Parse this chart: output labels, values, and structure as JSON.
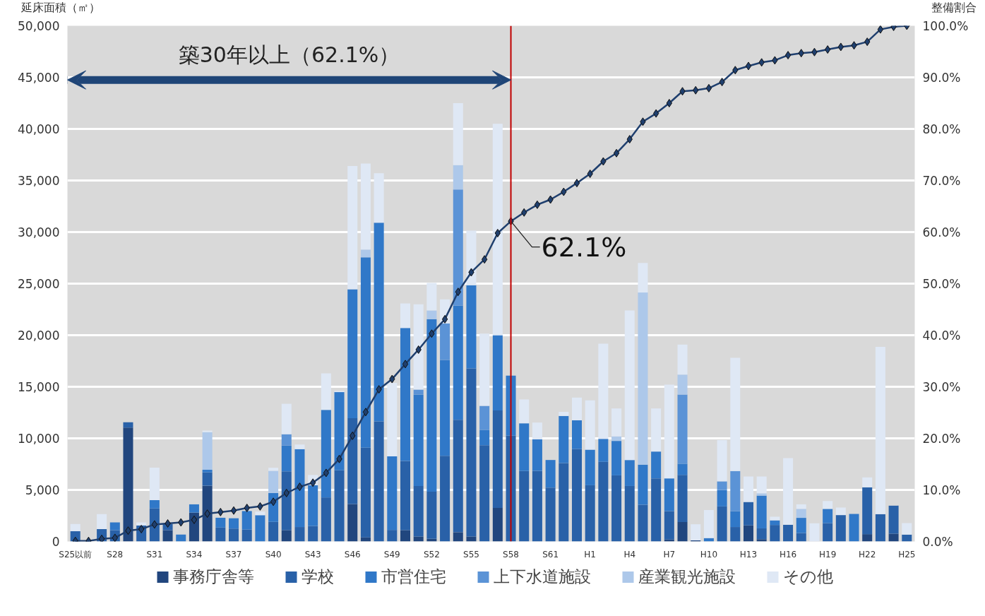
{
  "chart_data": {
    "type": "bar",
    "stacked": true,
    "ylabel": "延床面積（㎡）",
    "y2label": "整備割合",
    "categories": [
      "S25以前",
      null,
      null,
      "S28",
      null,
      null,
      "S31",
      null,
      null,
      "S34",
      null,
      null,
      "S37",
      null,
      null,
      "S40",
      null,
      null,
      "S43",
      null,
      null,
      "S46",
      null,
      null,
      "S49",
      null,
      null,
      "S52",
      null,
      null,
      "S55",
      null,
      null,
      "S58",
      null,
      null,
      "S61",
      null,
      null,
      "H1",
      null,
      null,
      "H4",
      null,
      null,
      "H7",
      null,
      null,
      "H10",
      null,
      null,
      "H13",
      null,
      null,
      "H16",
      null,
      null,
      "H19",
      null,
      null,
      "H22",
      null,
      null,
      "H25"
    ],
    "ylim": [
      0,
      50000
    ],
    "yticks": [
      0,
      {
        "value": 5000,
        "label": "5,000"
      },
      {
        "value": 10000,
        "label": "10,000"
      },
      {
        "value": 15000,
        "label": "15,000"
      },
      {
        "value": 20000,
        "label": "20,000"
      },
      {
        "value": 25000,
        "label": "25,000"
      },
      {
        "value": 30000,
        "label": "30,000"
      },
      {
        "value": 35000,
        "label": "35,000"
      },
      {
        "value": 40000,
        "label": "40,000"
      },
      {
        "value": 45000,
        "label": "45,000"
      },
      {
        "value": 50000,
        "label": "50,000"
      }
    ],
    "y2lim": [
      0,
      100
    ],
    "y2ticks": [
      {
        "value": 0,
        "label": "0.0%"
      },
      {
        "value": 10,
        "label": "10.0%"
      },
      {
        "value": 20,
        "label": "20.0%"
      },
      {
        "value": 30,
        "label": "30.0%"
      },
      {
        "value": 40,
        "label": "40.0%"
      },
      {
        "value": 50,
        "label": "50.0%"
      },
      {
        "value": 60,
        "label": "60.0%"
      },
      {
        "value": 70,
        "label": "70.0%"
      },
      {
        "value": 80,
        "label": "80.0%"
      },
      {
        "value": 90,
        "label": "90.0%"
      },
      {
        "value": 100,
        "label": "100.0%"
      }
    ],
    "grid": "y",
    "legend": "bottom",
    "series": [
      {
        "name": "事務庁舎等",
        "color": "#21467e",
        "values": [
          null,
          null,
          null,
          null,
          11050,
          null,
          null,
          1100,
          null,
          2800,
          5400,
          null,
          null,
          null,
          null,
          null,
          1100,
          null,
          null,
          null,
          null,
          3630,
          400,
          null,
          null,
          1100,
          480,
          250,
          null,
          900,
          480,
          null,
          3260,
          null,
          null,
          null,
          null,
          null,
          null,
          null,
          null,
          null,
          null,
          null,
          null,
          180,
          1890,
          110,
          null,
          null,
          null,
          1560,
          220,
          null,
          null,
          null,
          null,
          null,
          null,
          null,
          710,
          null,
          760,
          null
        ]
      },
      {
        "name": "学校",
        "color": "#2961a8",
        "values": [
          1000,
          null,
          1200,
          1100,
          500,
          1550,
          3200,
          600,
          null,
          null,
          1300,
          1350,
          1250,
          1150,
          null,
          1900,
          5700,
          1400,
          1500,
          4270,
          6900,
          8320,
          8700,
          11650,
          1120,
          6700,
          4890,
          4580,
          8300,
          10900,
          16300,
          9330,
          9440,
          10260,
          6830,
          6850,
          5230,
          7610,
          8970,
          5450,
          7720,
          6410,
          5380,
          3560,
          6120,
          2760,
          4560,
          null,
          null,
          3400,
          1400,
          2270,
          1050,
          1600,
          1620,
          820,
          null,
          1780,
          2560,
          null,
          4540,
          2650,
          2710,
          670
        ]
      },
      {
        "name": "市営住宅",
        "color": "#3078c8",
        "values": [
          null,
          null,
          null,
          750,
          null,
          null,
          800,
          null,
          670,
          800,
          250,
          950,
          1000,
          1800,
          2550,
          2800,
          2500,
          7550,
          3950,
          8490,
          7580,
          12500,
          18450,
          19250,
          7140,
          12900,
          8880,
          16730,
          9300,
          11080,
          8070,
          1470,
          7300,
          5820,
          4630,
          3050,
          2670,
          4560,
          2780,
          3450,
          2230,
          3340,
          2520,
          3890,
          2600,
          3180,
          1090,
          null,
          330,
          1600,
          1540,
          null,
          3180,
          450,
          null,
          1470,
          null,
          1380,
          null,
          2670,
          null,
          null,
          null,
          null
        ]
      },
      {
        "name": "上下水道施設",
        "color": "#5b93d6",
        "values": [
          null,
          null,
          null,
          null,
          null,
          null,
          null,
          null,
          null,
          null,
          null,
          null,
          null,
          null,
          null,
          null,
          1100,
          null,
          null,
          null,
          null,
          null,
          null,
          null,
          null,
          null,
          480,
          null,
          3540,
          11250,
          null,
          2350,
          null,
          null,
          null,
          null,
          null,
          null,
          null,
          null,
          null,
          null,
          null,
          null,
          null,
          null,
          6700,
          null,
          null,
          830,
          3890,
          null,
          null,
          null,
          null,
          null,
          null,
          null,
          null,
          null,
          null,
          null,
          null,
          null
        ]
      },
      {
        "name": "産業観光施設",
        "color": "#adc8ea",
        "values": [
          null,
          null,
          null,
          null,
          null,
          null,
          null,
          null,
          null,
          null,
          3650,
          null,
          null,
          null,
          null,
          2150,
          null,
          null,
          null,
          null,
          null,
          null,
          750,
          null,
          null,
          null,
          null,
          840,
          null,
          2360,
          null,
          null,
          null,
          null,
          null,
          null,
          null,
          null,
          null,
          null,
          null,
          440,
          null,
          16690,
          null,
          null,
          1940,
          null,
          null,
          null,
          null,
          null,
          220,
          null,
          null,
          870,
          null,
          null,
          null,
          null,
          null,
          null,
          null,
          null
        ]
      },
      {
        "name": "その他",
        "color": "#dfe8f5",
        "values": [
          700,
          null,
          1450,
          null,
          null,
          300,
          3150,
          null,
          null,
          null,
          150,
          null,
          null,
          null,
          350,
          300,
          2950,
          450,
          1000,
          3540,
          120,
          11950,
          8350,
          4800,
          7120,
          2380,
          8270,
          2670,
          2330,
          6010,
          5280,
          7000,
          20500,
          null,
          2310,
          1630,
          null,
          400,
          2200,
          4780,
          9230,
          2710,
          14500,
          2860,
          4180,
          9080,
          2910,
          1560,
          2720,
          4000,
          10970,
          2470,
          1630,
          350,
          6460,
          440,
          1760,
          760,
          730,
          null,
          960,
          16220,
          null,
          1110
        ]
      },
      {
        "type": "line",
        "axis": "y2",
        "color": "#1f3f6e",
        "marker": "diamond",
        "values": [
          0.1,
          0.1,
          0.5,
          0.7,
          2.1,
          2.4,
          3.3,
          3.5,
          3.7,
          4.2,
          5.4,
          5.7,
          6.0,
          6.5,
          6.8,
          7.7,
          9.4,
          10.6,
          11.4,
          13.3,
          16.0,
          20.5,
          25.1,
          29.5,
          31.5,
          34.4,
          37.2,
          40.3,
          43.1,
          48.4,
          52.2,
          54.7,
          59.8,
          62.1,
          63.8,
          65.3,
          66.3,
          67.8,
          69.5,
          71.3,
          73.7,
          75.3,
          78.0,
          81.4,
          83.0,
          85.0,
          87.3,
          87.5,
          87.9,
          89.1,
          91.4,
          92.2,
          92.9,
          93.3,
          94.3,
          94.7,
          94.9,
          95.4,
          95.9,
          96.2,
          96.9,
          99.3,
          99.8,
          100
        ]
      }
    ],
    "ref_lines": [
      {
        "axis": "x",
        "value": "S58",
        "color": "#c00000"
      }
    ],
    "annotations": [
      "築30年以上（62.1%）",
      "62.1%"
    ]
  }
}
